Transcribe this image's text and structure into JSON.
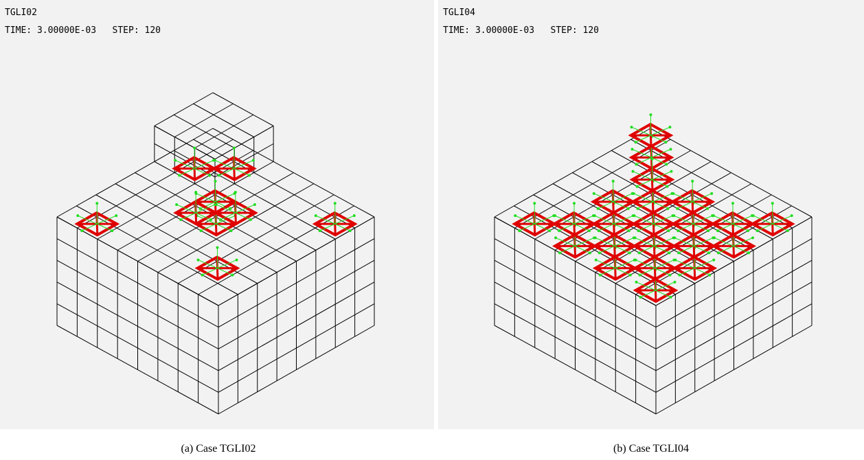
{
  "panels": [
    {
      "label": "TGLI02",
      "status": "TIME: 3.00000E-03   STEP: 120",
      "caption": "(a) Case TGLI02"
    },
    {
      "label": "TGLI04",
      "status": "TIME: 3.00000E-03   STEP: 120",
      "caption": "(b) Case TGLI04"
    }
  ]
}
